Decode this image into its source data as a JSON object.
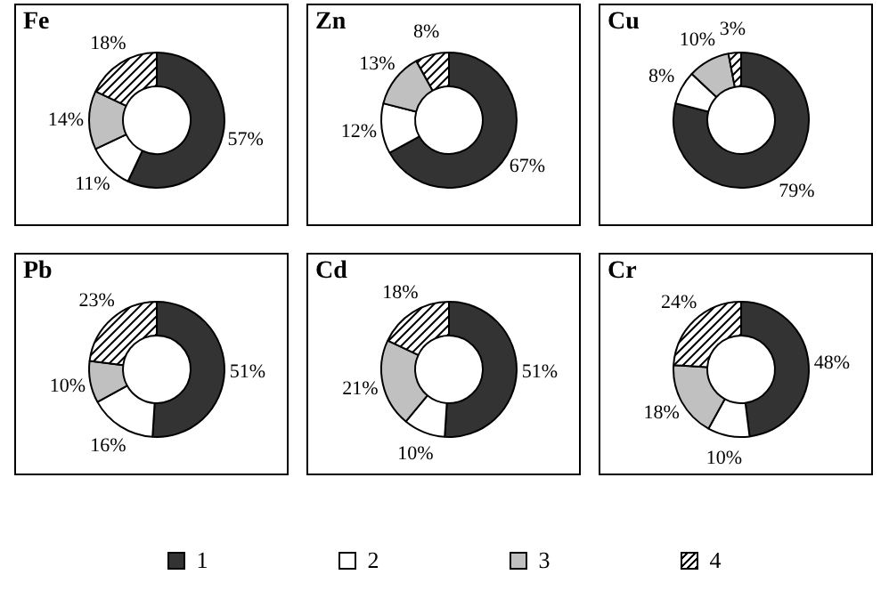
{
  "chart_data": [
    {
      "type": "donut",
      "title": "Fe",
      "categories": [
        "1",
        "2",
        "3",
        "4"
      ],
      "values": [
        57,
        11,
        14,
        18
      ],
      "value_labels": [
        "57%",
        "11%",
        "14%",
        "18%"
      ],
      "colors": [
        "#333333",
        "#ffffff",
        "#c0c0c0",
        "#ffffff"
      ],
      "legend": "bottom"
    },
    {
      "type": "donut",
      "title": "Zn",
      "categories": [
        null,
        null,
        null,
        null
      ],
      "values": [
        67,
        12,
        13,
        8
      ],
      "value_labels": [
        "67%",
        "12%",
        "13%",
        "8%"
      ],
      "colors": [
        "#333333",
        "#ffffff",
        "#c0c0c0",
        "#ffffff"
      ]
    },
    {
      "type": "donut",
      "title": "Cu",
      "categories": [
        null,
        null,
        null,
        null
      ],
      "values": [
        79,
        8,
        10,
        3
      ],
      "value_labels": [
        "79%",
        "8%",
        "10%",
        "3%"
      ],
      "colors": [
        "#333333",
        "#ffffff",
        "#c0c0c0",
        "#ffffff"
      ]
    },
    {
      "type": "donut",
      "title": "Pb",
      "categories": [
        null,
        null,
        null,
        null
      ],
      "values": [
        51,
        16,
        10,
        23
      ],
      "value_labels": [
        "51%",
        "16%",
        "10%",
        "23%"
      ],
      "colors": [
        "#333333",
        "#ffffff",
        "#c0c0c0",
        "#ffffff"
      ]
    },
    {
      "type": "donut",
      "title": "Cd",
      "categories": [
        null,
        null,
        null,
        null
      ],
      "values": [
        51,
        10,
        21,
        18
      ],
      "value_labels": [
        "51%",
        "10%",
        "21%",
        "18%"
      ],
      "colors": [
        "#333333",
        "#ffffff",
        "#c0c0c0",
        "#ffffff"
      ]
    },
    {
      "type": "donut",
      "title": "Cr",
      "categories": [
        null,
        null,
        null,
        null
      ],
      "values": [
        48,
        10,
        18,
        24
      ],
      "value_labels": [
        "48%",
        "10%",
        "18%",
        "24%"
      ],
      "colors": [
        "#333333",
        "#ffffff",
        "#c0c0c0",
        "#ffffff"
      ]
    }
  ]
}
